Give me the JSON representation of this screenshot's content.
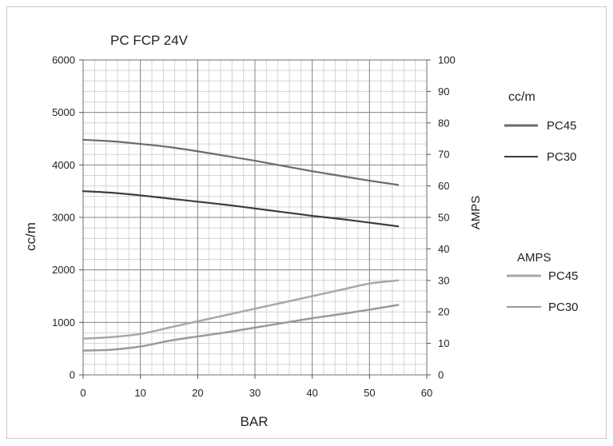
{
  "chart_data": {
    "type": "line",
    "title": "PC FCP 24V",
    "xlabel": "BAR",
    "ylabel_left": "cc/m",
    "ylabel_right": "AMPS",
    "xlim": [
      0,
      60
    ],
    "ylim_left": [
      0,
      6000
    ],
    "ylim_right": [
      0,
      100
    ],
    "x_ticks": [
      0,
      10,
      20,
      30,
      40,
      50,
      60
    ],
    "y_left_ticks": [
      0,
      1000,
      2000,
      3000,
      4000,
      5000,
      6000
    ],
    "y_right_ticks": [
      0,
      10,
      20,
      30,
      40,
      50,
      60,
      70,
      80,
      90,
      100
    ],
    "grid": true,
    "minor_grid": true,
    "legend_groups": [
      {
        "title": "cc/m",
        "entries": [
          "PC45",
          "PC30"
        ],
        "placement": "right-top"
      },
      {
        "title": "AMPS",
        "entries": [
          "PC45",
          "PC30"
        ],
        "placement": "right-middle"
      }
    ],
    "series": [
      {
        "name": "PC45",
        "group": "cc/m",
        "axis": "left",
        "color": "#6b6b6b",
        "x": [
          0,
          5,
          10,
          15,
          20,
          25,
          30,
          35,
          40,
          45,
          50,
          55
        ],
        "y": [
          4480,
          4450,
          4400,
          4340,
          4260,
          4170,
          4080,
          3980,
          3880,
          3790,
          3700,
          3620
        ]
      },
      {
        "name": "PC30",
        "group": "cc/m",
        "axis": "left",
        "color": "#3d3d3d",
        "x": [
          0,
          5,
          10,
          15,
          20,
          25,
          30,
          35,
          40,
          45,
          50,
          55
        ],
        "y": [
          3500,
          3470,
          3420,
          3360,
          3300,
          3240,
          3170,
          3100,
          3030,
          2970,
          2900,
          2830
        ]
      },
      {
        "name": "PC45",
        "group": "AMPS",
        "axis": "right",
        "color": "#a8a8a8",
        "x": [
          0,
          5,
          10,
          15,
          20,
          25,
          30,
          35,
          40,
          45,
          50,
          55
        ],
        "y": [
          11.5,
          12,
          13,
          15,
          17,
          19,
          21,
          23,
          25,
          27,
          29,
          30
        ]
      },
      {
        "name": "PC30",
        "group": "AMPS",
        "axis": "right",
        "color": "#9a9a9a",
        "x": [
          0,
          5,
          10,
          15,
          20,
          25,
          30,
          35,
          40,
          45,
          50,
          55
        ],
        "y": [
          7.7,
          8,
          9,
          10.8,
          12.2,
          13.5,
          15,
          16.5,
          18,
          19.3,
          20.7,
          22.2
        ]
      }
    ]
  }
}
